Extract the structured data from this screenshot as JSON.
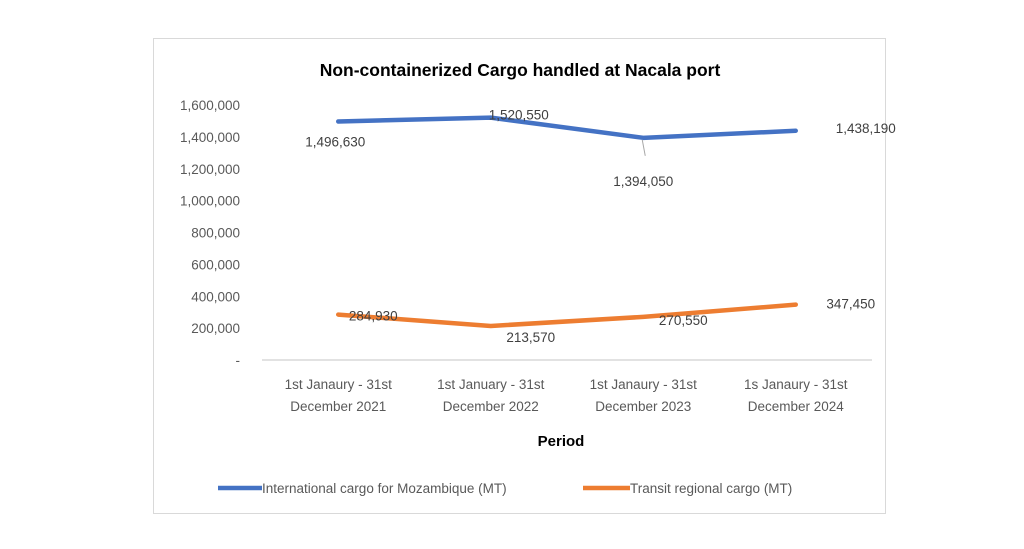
{
  "chart_data": {
    "type": "line",
    "title": "Non-containerized Cargo handled at Nacala port",
    "xlabel": "Period",
    "ylabel": "",
    "ylim": [
      0,
      1600000
    ],
    "yticks": [
      0,
      200000,
      400000,
      600000,
      800000,
      1000000,
      1200000,
      1400000,
      1600000
    ],
    "ytick_labels": [
      "-",
      "200,000",
      "400,000",
      "600,000",
      "800,000",
      "1,000,000",
      "1,200,000",
      "1,400,000",
      "1,600,000"
    ],
    "grid": false,
    "legend_position": "bottom",
    "categories": [
      [
        "1st Janaury - 31st",
        "December 2021"
      ],
      [
        "1st January - 31st",
        "December 2022"
      ],
      [
        "1st Janaury - 31st",
        "December 2023"
      ],
      [
        "1s Janaury - 31st",
        "December 2024"
      ]
    ],
    "series": [
      {
        "name": "International cargo for Mozambique (MT)",
        "color": "#4472c4",
        "values": [
          1496630,
          1520550,
          1394050,
          1438190
        ],
        "labels": [
          "1,496,630",
          "1,520,550",
          "1,394,050",
          "1,438,190"
        ]
      },
      {
        "name": "Transit regional cargo (MT)",
        "color": "#ed7d31",
        "values": [
          284930,
          213570,
          270550,
          347450
        ],
        "labels": [
          "284,930",
          "213,570",
          "270,550",
          "347,450"
        ]
      }
    ]
  }
}
